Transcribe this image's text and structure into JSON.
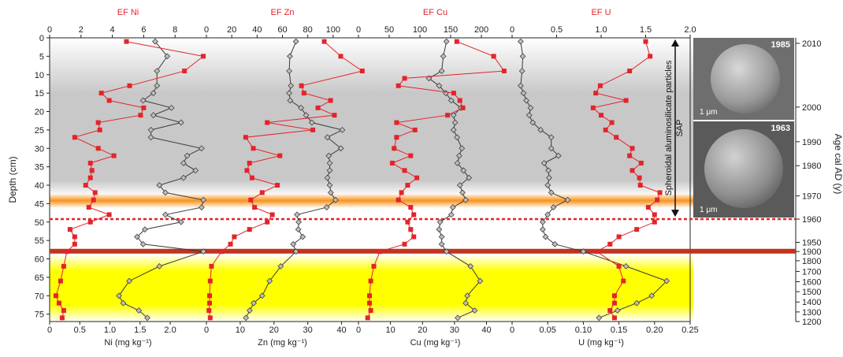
{
  "chart_data": {
    "type": "line",
    "depth_axis": {
      "label": "Depth (cm)",
      "range": [
        0,
        77
      ],
      "ticks": [
        0,
        5,
        10,
        15,
        20,
        25,
        30,
        35,
        40,
        45,
        50,
        55,
        60,
        65,
        70,
        75
      ]
    },
    "age_axis": {
      "label": "Age cal AD (y)",
      "ticks": [
        {
          "depth": 1.5,
          "label": "2010"
        },
        {
          "depth": 18.8,
          "label": "2000"
        },
        {
          "depth": 28.2,
          "label": "1990"
        },
        {
          "depth": 34.7,
          "label": "1980"
        },
        {
          "depth": 42.9,
          "label": "1970"
        },
        {
          "depth": 49.2,
          "label": "1960"
        },
        {
          "depth": 55.5,
          "label": "1950"
        },
        {
          "depth": 58.0,
          "label": "1900"
        },
        {
          "depth": 60.5,
          "label": "1800"
        },
        {
          "depth": 63.4,
          "label": "1700"
        },
        {
          "depth": 66.2,
          "label": "1600"
        },
        {
          "depth": 68.9,
          "label": "1500"
        },
        {
          "depth": 71.7,
          "label": "1400"
        },
        {
          "depth": 74.4,
          "label": "1300"
        },
        {
          "depth": 77.0,
          "label": "1200"
        }
      ]
    },
    "shading": [
      {
        "from": 0,
        "to": 43,
        "color": "#c8c8c8",
        "desc": "gray band"
      },
      {
        "from": 42.2,
        "to": 46.2,
        "color": "#f7931e",
        "desc": "orange band"
      },
      {
        "from": 58.8,
        "to": 77,
        "color": "#ffff00",
        "desc": "yellow band"
      }
    ],
    "markers": {
      "dotted_line_depth": 49.2,
      "solid_line_depth": 57.9
    },
    "panels": [
      {
        "element": "Ni",
        "ef_label": "EF Ni",
        "ef_range": [
          0,
          10
        ],
        "ef_ticks": [
          "0",
          "2",
          "4",
          "6",
          "8"
        ],
        "conc_label": "Ni (mg kg⁻¹)",
        "conc_range": [
          0,
          2.6
        ],
        "conc_ticks": [
          "0",
          "0.5",
          "1.0",
          "1.5",
          "2.0"
        ],
        "depths": [
          1,
          5,
          9,
          13,
          15,
          17,
          19,
          21,
          23,
          25,
          27,
          30,
          32,
          34,
          36,
          38,
          40,
          42,
          44,
          46,
          48,
          50,
          52,
          54,
          56,
          58,
          62,
          66,
          70,
          72,
          74,
          76
        ],
        "conc": [
          1.75,
          1.95,
          1.78,
          1.78,
          1.72,
          1.55,
          2.02,
          1.72,
          2.18,
          1.68,
          1.68,
          2.52,
          2.28,
          2.22,
          2.42,
          2.22,
          1.82,
          1.92,
          2.55,
          2.52,
          1.92,
          2.18,
          1.58,
          1.45,
          1.55,
          2.55,
          1.82,
          1.32,
          1.15,
          1.22,
          1.48,
          1.62
        ],
        "ef": [
          4.9,
          9.8,
          8.6,
          5.1,
          3.3,
          3.8,
          6.0,
          5.8,
          3.1,
          3.2,
          1.6,
          3.1,
          4.1,
          2.6,
          2.7,
          2.6,
          2.3,
          2.9,
          2.8,
          2.5,
          3.8,
          2.6,
          1.3,
          1.6,
          1.6,
          1.1,
          0.9,
          0.7,
          0.4,
          0.6,
          0.9,
          0.8
        ]
      },
      {
        "element": "Zn",
        "ef_label": "EF Zn",
        "ef_range": [
          0,
          120
        ],
        "ef_ticks": [
          "0",
          "20",
          "40",
          "60",
          "80",
          "100"
        ],
        "conc_label": "Zn (mg kg⁻¹)",
        "conc_range": [
          0,
          45
        ],
        "conc_ticks": [
          "0",
          "10",
          "20",
          "30",
          "40"
        ],
        "depths": [
          1,
          5,
          9,
          13,
          15,
          17,
          19,
          21,
          23,
          25,
          27,
          30,
          32,
          34,
          36,
          38,
          40,
          42,
          44,
          46,
          48,
          50,
          52,
          54,
          56,
          58,
          62,
          66,
          70,
          72,
          74,
          76
        ],
        "conc": [
          26.5,
          24.7,
          24.5,
          25.0,
          24.5,
          24.8,
          28.0,
          29.5,
          31.2,
          40.2,
          35.8,
          39.8,
          36.2,
          36.5,
          36.5,
          35.8,
          36.5,
          36.8,
          38.2,
          35.6,
          26.8,
          27.3,
          27.2,
          28.5,
          25.7,
          26.5,
          22.0,
          18.7,
          16.5,
          14.0,
          12.8,
          11.7
        ],
        "ef": [
          93,
          106,
          123,
          75,
          77,
          98,
          88,
          101,
          48,
          84,
          31,
          37,
          58,
          34,
          32,
          36,
          56,
          44,
          35,
          38,
          52,
          48,
          34,
          22,
          19,
          12,
          4,
          3,
          2.5,
          2.5,
          2,
          3
        ]
      },
      {
        "element": "Cu",
        "ef_label": "EF Cu",
        "ef_range": [
          0,
          250
        ],
        "ef_ticks": [
          "0",
          "50",
          "100",
          "150",
          "200"
        ],
        "conc_label": "Cu (mg kg⁻¹)",
        "conc_range": [
          0,
          48
        ],
        "conc_ticks": [
          "0",
          "10",
          "20",
          "30",
          "40"
        ],
        "depths": [
          1,
          5,
          9,
          11,
          13,
          15,
          17,
          19,
          21,
          23,
          25,
          27,
          30,
          32,
          34,
          36,
          38,
          40,
          42,
          44,
          46,
          48,
          50,
          52,
          54,
          56,
          58,
          62,
          66,
          70,
          72,
          74,
          76
        ],
        "conc": [
          27.5,
          26.5,
          26.0,
          22.0,
          25.2,
          27.3,
          29.0,
          32.0,
          29.7,
          30.2,
          29.7,
          30.8,
          32.3,
          31.5,
          30.9,
          32.8,
          34.5,
          31.7,
          32.5,
          33.5,
          29.5,
          29.0,
          25.5,
          25.2,
          26.0,
          26.0,
          27.5,
          35.0,
          38.0,
          34.0,
          33.5,
          36.3,
          31.0
        ],
        "ef": [
          160,
          220,
          237,
          75,
          65,
          155,
          165,
          170,
          145,
          62,
          92,
          62,
          58,
          85,
          55,
          75,
          95,
          80,
          70,
          65,
          85,
          90,
          80,
          85,
          90,
          75,
          35,
          25,
          20,
          18,
          18,
          20,
          15
        ]
      },
      {
        "element": "U",
        "ef_label": "EF U",
        "ef_range": [
          0,
          2.0
        ],
        "ef_ticks": [
          "0",
          "0.5",
          "1.0",
          "1.5",
          "2.0"
        ],
        "conc_label": "U (mg kg⁻¹)",
        "conc_range": [
          0,
          0.25
        ],
        "conc_ticks": [
          "0",
          "0.05",
          "0.10",
          "0.15",
          "0.20",
          "0.25"
        ],
        "depths": [
          1,
          5,
          9,
          13,
          15,
          17,
          19,
          21,
          23,
          25,
          27,
          30,
          32,
          34,
          36,
          38,
          40,
          42,
          44,
          46,
          48,
          50,
          52,
          54,
          56,
          58,
          62,
          66,
          70,
          72,
          74,
          76
        ],
        "conc": [
          0.012,
          0.015,
          0.014,
          0.012,
          0.016,
          0.02,
          0.026,
          0.024,
          0.029,
          0.04,
          0.055,
          0.055,
          0.065,
          0.045,
          0.051,
          0.052,
          0.05,
          0.055,
          0.078,
          0.058,
          0.05,
          0.043,
          0.043,
          0.047,
          0.06,
          0.1,
          0.16,
          0.217,
          0.196,
          0.175,
          0.148,
          0.122
        ],
        "ef": [
          1.5,
          1.55,
          1.32,
          0.99,
          0.94,
          1.28,
          0.91,
          1.0,
          1.12,
          1.05,
          1.17,
          1.35,
          1.32,
          1.45,
          1.35,
          1.43,
          1.44,
          1.66,
          1.63,
          1.53,
          1.6,
          1.6,
          1.4,
          1.2,
          1.1,
          0.95,
          1.2,
          1.25,
          1.15,
          1.15,
          1.1,
          1.15
        ]
      }
    ],
    "series_styles": {
      "conc": {
        "color": "#3a3a3a",
        "marker": "diamond"
      },
      "ef": {
        "color": "#e3242b",
        "marker": "square"
      }
    },
    "annotation": {
      "text": "Spheroidal aluminosilicate particles",
      "abbr": "SAP",
      "range": [
        0,
        49
      ]
    },
    "photos": [
      {
        "year": "1985",
        "scale": "1 μm"
      },
      {
        "year": "1963",
        "scale": "1 μm"
      }
    ]
  }
}
